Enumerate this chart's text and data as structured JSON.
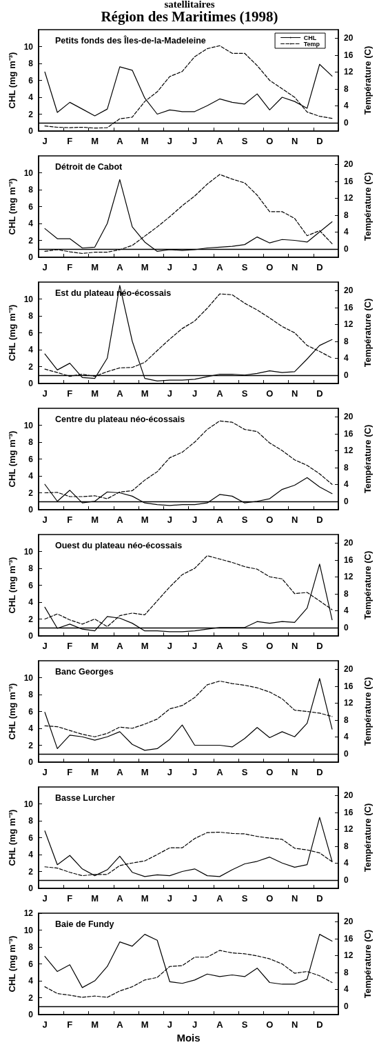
{
  "chart_data": [
    {
      "type": "line",
      "title": "Petits fonds des Îles-de-la-Madeleine",
      "annotations": [
        "satellitaires",
        "Région des Maritimes (1998)"
      ],
      "ylabel": "CHL (mg m⁻³)",
      "y2label": "Température (C)",
      "legend": "top right",
      "marker": "none",
      "categories": [
        "J",
        null,
        "F",
        null,
        "M",
        null,
        "A",
        null,
        "M",
        null,
        "J",
        null,
        "J",
        null,
        "A",
        null,
        "S",
        null,
        "O",
        null,
        "N",
        null,
        "D",
        null
      ],
      "ylim": [
        0,
        12
      ],
      "yticks": [
        0,
        2,
        4,
        6,
        8,
        10
      ],
      "y2lim": [
        -2,
        22
      ],
      "y2ticks": [
        0,
        4,
        8,
        12,
        16,
        20
      ],
      "ref_lines": [
        {
          "axis": "y",
          "value": 1,
          "color": "#000000"
        }
      ],
      "series": [
        {
          "name": "CHL",
          "color": "#000000",
          "line_style": "solid",
          "values": [
            7.0,
            2.2,
            3.4,
            2.6,
            1.8,
            2.6,
            7.6,
            7.2,
            3.9,
            2.0,
            2.5,
            2.3,
            2.3,
            3.0,
            3.8,
            3.4,
            3.2,
            4.4,
            2.5,
            4.0,
            3.5,
            2.7,
            7.9,
            6.5
          ]
        },
        {
          "name": "Temp",
          "color": "#000000",
          "line_style": "dashed",
          "axis": "y2",
          "values": [
            -0.8,
            -1.1,
            -1.2,
            -1.1,
            -1.3,
            -1.2,
            0.9,
            1.3,
            5.0,
            7.3,
            10.9,
            12.1,
            15.6,
            17.5,
            18.2,
            16.4,
            16.4,
            13.5,
            10.0,
            8.0,
            6.0,
            2.5,
            1.5,
            1.0
          ]
        }
      ]
    },
    {
      "type": "line",
      "title": "Détroit de Cabot",
      "ylabel": "CHL (mg m⁻³)",
      "y2label": "Température (C)",
      "marker": "none",
      "categories": [
        "J",
        null,
        "F",
        null,
        "M",
        null,
        "A",
        null,
        "M",
        null,
        "J",
        null,
        "J",
        null,
        "A",
        null,
        "S",
        null,
        "O",
        null,
        "N",
        null,
        "D",
        null
      ],
      "ylim": [
        0,
        12
      ],
      "yticks": [
        0,
        2,
        4,
        6,
        8,
        10
      ],
      "y2lim": [
        -2,
        22
      ],
      "y2ticks": [
        0,
        4,
        8,
        12,
        16,
        20
      ],
      "ref_lines": [
        {
          "axis": "y",
          "value": 1,
          "color": "#000000"
        }
      ],
      "series": [
        {
          "color": "#000000",
          "line_style": "solid",
          "values": [
            3.4,
            2.2,
            2.2,
            1.1,
            1.2,
            4.0,
            9.2,
            3.6,
            1.8,
            0.7,
            0.9,
            0.8,
            0.9,
            1.1,
            1.2,
            1.3,
            1.5,
            2.4,
            1.7,
            2.1,
            2.0,
            1.8,
            3.0,
            4.2
          ]
        },
        {
          "color": "#000000",
          "line_style": "dashed",
          "axis": "y2",
          "values": [
            -0.6,
            -0.2,
            -0.7,
            -1.1,
            -0.8,
            -0.8,
            -0.2,
            0.8,
            3.0,
            5.2,
            7.6,
            10.2,
            12.5,
            15.3,
            17.6,
            16.5,
            15.6,
            12.7,
            8.8,
            8.8,
            7.2,
            3.1,
            4.3,
            1.2
          ]
        }
      ]
    },
    {
      "type": "line",
      "title": "Est du plateau néo-écossais",
      "ylabel": "CHL (mg m⁻³)",
      "y2label": "Température (C)",
      "marker": "none",
      "categories": [
        "J",
        null,
        "F",
        null,
        "M",
        null,
        "A",
        null,
        "M",
        null,
        "J",
        null,
        "J",
        null,
        "A",
        null,
        "S",
        null,
        "O",
        null,
        "N",
        null,
        "D",
        null
      ],
      "ylim": [
        0,
        12
      ],
      "yticks": [
        0,
        2,
        4,
        6,
        8,
        10
      ],
      "y2lim": [
        -2,
        22
      ],
      "y2ticks": [
        0,
        4,
        8,
        12,
        16,
        20
      ],
      "ref_lines": [
        {
          "axis": "y",
          "value": 1,
          "color": "#000000"
        }
      ],
      "series": [
        {
          "color": "#000000",
          "line_style": "solid",
          "values": [
            3.5,
            1.6,
            2.4,
            0.7,
            0.6,
            3.0,
            11.6,
            5.0,
            0.6,
            0.3,
            0.4,
            0.4,
            0.5,
            0.8,
            1.1,
            1.1,
            1.0,
            1.2,
            1.5,
            1.3,
            1.4,
            2.9,
            4.5,
            5.2
          ]
        },
        {
          "color": "#000000",
          "line_style": "dashed",
          "axis": "y2",
          "values": [
            1.4,
            0.6,
            -0.3,
            0.2,
            -0.3,
            0.8,
            1.7,
            1.8,
            3.0,
            5.8,
            8.5,
            11.0,
            12.8,
            15.8,
            19.2,
            19.0,
            17.0,
            15.4,
            13.5,
            11.5,
            10.0,
            7.0,
            5.6,
            4.0
          ]
        }
      ]
    },
    {
      "type": "line",
      "title": "Centre du plateau néo-écossais",
      "ylabel": "CHL (mg m⁻³)",
      "y2label": "Température (C)",
      "marker": "none",
      "categories": [
        "J",
        null,
        "F",
        null,
        "M",
        null,
        "A",
        null,
        "M",
        null,
        "J",
        null,
        "J",
        null,
        "A",
        null,
        "S",
        null,
        "O",
        null,
        "N",
        null,
        "D",
        null
      ],
      "ylim": [
        0,
        12
      ],
      "yticks": [
        0,
        2,
        4,
        6,
        8,
        10
      ],
      "y2lim": [
        -2,
        22
      ],
      "y2ticks": [
        0,
        4,
        8,
        12,
        16,
        20
      ],
      "ref_lines": [
        {
          "axis": "y",
          "value": 1,
          "color": "#000000"
        }
      ],
      "series": [
        {
          "color": "#000000",
          "line_style": "solid",
          "values": [
            3.0,
            1.0,
            2.3,
            0.8,
            1.0,
            2.1,
            2.0,
            1.6,
            0.8,
            0.6,
            0.5,
            0.6,
            0.6,
            0.8,
            1.8,
            1.6,
            0.8,
            1.0,
            1.3,
            2.4,
            2.9,
            3.8,
            2.7,
            1.9
          ]
        },
        {
          "color": "#000000",
          "line_style": "dashed",
          "axis": "y2",
          "values": [
            2.0,
            2.1,
            1.1,
            1.1,
            1.3,
            0.6,
            2.2,
            2.5,
            5.0,
            7.0,
            10.3,
            11.6,
            14.0,
            17.0,
            19.0,
            18.7,
            17.0,
            16.5,
            13.8,
            12.0,
            9.8,
            8.5,
            6.5,
            4.0
          ]
        }
      ]
    },
    {
      "type": "line",
      "title": "Ouest du plateau néo-écossais",
      "ylabel": "CHL (mg m⁻³)",
      "y2label": "Température (C)",
      "marker": "none",
      "categories": [
        "J",
        null,
        "F",
        null,
        "M",
        null,
        "A",
        null,
        "M",
        null,
        "J",
        null,
        "J",
        null,
        "A",
        null,
        "S",
        null,
        "O",
        null,
        "N",
        null,
        "D",
        null
      ],
      "ylim": [
        0,
        12
      ],
      "yticks": [
        0,
        2,
        4,
        6,
        8,
        10
      ],
      "y2lim": [
        -2,
        22
      ],
      "y2ticks": [
        0,
        4,
        8,
        12,
        16,
        20
      ],
      "ref_lines": [
        {
          "axis": "y",
          "value": 1,
          "color": "#000000"
        }
      ],
      "series": [
        {
          "color": "#000000",
          "line_style": "solid",
          "values": [
            3.4,
            0.9,
            1.4,
            0.8,
            0.6,
            2.3,
            2.1,
            1.5,
            0.6,
            0.6,
            0.5,
            0.5,
            0.6,
            0.8,
            1.0,
            1.0,
            1.0,
            1.7,
            1.5,
            1.7,
            1.6,
            3.3,
            8.5,
            1.9
          ]
        },
        {
          "color": "#000000",
          "line_style": "dashed",
          "axis": "y2",
          "values": [
            2.0,
            3.2,
            1.8,
            0.8,
            2.0,
            0.2,
            2.8,
            3.4,
            3.0,
            6.3,
            9.6,
            12.5,
            14.0,
            17.0,
            16.2,
            15.4,
            14.4,
            13.8,
            12.0,
            11.5,
            8.0,
            8.3,
            6.3,
            4.2
          ]
        }
      ]
    },
    {
      "type": "line",
      "title": "Banc Georges",
      "ylabel": "CHL (mg m⁻³)",
      "y2label": "Température (C)",
      "marker": "none",
      "categories": [
        "J",
        null,
        "F",
        null,
        "M",
        null,
        "A",
        null,
        "M",
        null,
        "J",
        null,
        "J",
        null,
        "A",
        null,
        "S",
        null,
        "O",
        null,
        "N",
        null,
        "D",
        null
      ],
      "ylim": [
        0,
        12
      ],
      "yticks": [
        0,
        2,
        4,
        6,
        8,
        10
      ],
      "y2lim": [
        -2,
        22
      ],
      "y2ticks": [
        0,
        4,
        8,
        12,
        16,
        20
      ],
      "ref_lines": [
        {
          "axis": "y",
          "value": 1,
          "color": "#000000"
        }
      ],
      "series": [
        {
          "color": "#000000",
          "line_style": "solid",
          "values": [
            5.9,
            1.6,
            3.2,
            3.0,
            2.6,
            3.0,
            3.6,
            2.1,
            1.4,
            1.6,
            2.7,
            4.4,
            2.0,
            2.0,
            2.0,
            1.8,
            2.8,
            4.1,
            2.9,
            3.6,
            3.0,
            4.6,
            9.9,
            3.9
          ]
        },
        {
          "color": "#000000",
          "line_style": "dashed",
          "axis": "y2",
          "values": [
            6.6,
            6.4,
            5.5,
            4.6,
            4.0,
            4.8,
            6.3,
            6.0,
            7.0,
            8.2,
            10.6,
            11.4,
            13.3,
            16.3,
            17.2,
            16.6,
            16.2,
            15.6,
            14.6,
            13.0,
            10.3,
            10.0,
            9.6,
            8.8
          ]
        }
      ]
    },
    {
      "type": "line",
      "title": "Basse Lurcher",
      "ylabel": "CHL (mg m⁻³)",
      "y2label": "Température (C)",
      "marker": "none",
      "categories": [
        "J",
        null,
        "F",
        null,
        "M",
        null,
        "A",
        null,
        "M",
        null,
        "J",
        null,
        "J",
        null,
        "A",
        null,
        "S",
        null,
        "O",
        null,
        "N",
        null,
        "D",
        null
      ],
      "ylim": [
        0,
        12
      ],
      "yticks": [
        0,
        2,
        4,
        6,
        8,
        10
      ],
      "y2lim": [
        -2,
        22
      ],
      "y2ticks": [
        0,
        4,
        8,
        12,
        16,
        20
      ],
      "ref_lines": [
        {
          "axis": "y",
          "value": 1,
          "color": "#000000"
        }
      ],
      "series": [
        {
          "color": "#000000",
          "line_style": "solid",
          "values": [
            6.8,
            2.8,
            3.9,
            2.3,
            1.5,
            2.2,
            3.8,
            1.9,
            1.4,
            1.6,
            1.5,
            2.0,
            2.3,
            1.5,
            1.4,
            2.2,
            2.9,
            3.2,
            3.7,
            3.0,
            2.5,
            2.8,
            8.4,
            3.2
          ]
        },
        {
          "color": "#000000",
          "line_style": "dashed",
          "axis": "y2",
          "values": [
            3.1,
            2.8,
            1.8,
            1.0,
            1.3,
            1.3,
            3.4,
            4.0,
            4.5,
            6.0,
            7.6,
            7.6,
            9.8,
            11.2,
            11.3,
            11.0,
            10.9,
            10.3,
            9.9,
            9.6,
            7.5,
            7.1,
            6.4,
            4.3
          ]
        }
      ]
    },
    {
      "type": "line",
      "title": "Baie de Fundy",
      "xlabel": "Mois",
      "ylabel": "CHL (mg m⁻³)",
      "y2label": "Température (C)",
      "marker": "none",
      "categories": [
        "J",
        null,
        "F",
        null,
        "M",
        null,
        "A",
        null,
        "M",
        null,
        "J",
        null,
        "J",
        null,
        "A",
        null,
        "S",
        null,
        "O",
        null,
        "N",
        null,
        "D",
        null
      ],
      "ylim": [
        0,
        12
      ],
      "yticks": [
        0,
        2,
        4,
        6,
        8,
        10,
        12
      ],
      "y2lim": [
        -2,
        22
      ],
      "y2ticks": [
        0,
        4,
        8,
        12,
        16,
        20
      ],
      "ref_lines": [
        {
          "axis": "y",
          "value": 1,
          "color": "#000000"
        }
      ],
      "series": [
        {
          "color": "#000000",
          "line_style": "solid",
          "values": [
            6.9,
            5.1,
            5.9,
            3.2,
            4.0,
            5.7,
            8.6,
            8.1,
            9.5,
            8.8,
            3.9,
            3.7,
            4.1,
            4.8,
            4.5,
            4.7,
            4.5,
            5.5,
            3.8,
            3.6,
            3.6,
            4.2,
            9.5,
            8.7
          ]
        },
        {
          "color": "#000000",
          "line_style": "dashed",
          "axis": "y2",
          "values": [
            4.6,
            3.0,
            2.6,
            2.1,
            2.4,
            2.1,
            3.6,
            4.6,
            6.2,
            6.8,
            9.4,
            9.6,
            11.6,
            11.6,
            13.2,
            12.6,
            12.4,
            11.9,
            11.2,
            10.0,
            7.8,
            8.2,
            7.2,
            5.6
          ]
        }
      ]
    }
  ]
}
